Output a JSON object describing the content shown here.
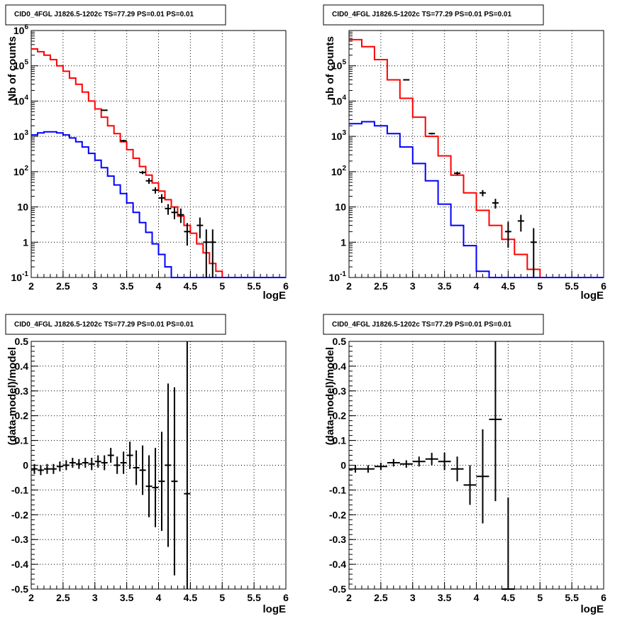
{
  "chart_data": [
    {
      "type": "histogram",
      "title": "CID0_4FGL J1826.5-1202c TS=77.29 PS=0.01 PS=0.01",
      "xlabel": "logE",
      "ylabel": "Nb of counts",
      "xlim": [
        2,
        6
      ],
      "ylim": [
        0.1,
        1000000
      ],
      "yscale": "log",
      "grid": true,
      "x_ticks": [
        "2",
        "2.5",
        "3",
        "3.5",
        "4",
        "4.5",
        "5",
        "5.5",
        "6"
      ],
      "y_ticks": [
        "10^-1",
        "1",
        "10",
        "10^2",
        "10^3",
        "10^4",
        "10^5",
        "10^6"
      ],
      "bin_edges": [
        2.0,
        2.1,
        2.2,
        2.3,
        2.4,
        2.5,
        2.6,
        2.7,
        2.8,
        2.9,
        3.0,
        3.1,
        3.2,
        3.3,
        3.4,
        3.5,
        3.6,
        3.7,
        3.8,
        3.9,
        4.0,
        4.1,
        4.2,
        4.3,
        4.4,
        4.5,
        4.6,
        4.7,
        4.8,
        4.9,
        5.0,
        5.1,
        5.2,
        5.3,
        5.4,
        5.5,
        5.6,
        5.7,
        5.8,
        5.9,
        6.0
      ],
      "series": [
        {
          "color": "#ff0000",
          "style": "step",
          "values": [
            300000,
            250000,
            200000,
            150000,
            100000,
            70000,
            45000,
            30000,
            18000,
            10000,
            6000,
            3500,
            2000,
            1200,
            700,
            420,
            240,
            140,
            80,
            48,
            28,
            16,
            10,
            5.5,
            3,
            1.8,
            0.9,
            0.5,
            0.25,
            0.15,
            0.1,
            0.1,
            0.1,
            0.1,
            0.1,
            0.1,
            0.1,
            0.1,
            0.1,
            0.1
          ]
        },
        {
          "color": "#0000ff",
          "style": "step",
          "values": [
            1100,
            1250,
            1350,
            1350,
            1250,
            1100,
            900,
            700,
            500,
            330,
            210,
            130,
            75,
            42,
            24,
            13,
            7,
            3.6,
            1.9,
            0.9,
            0.45,
            0.2,
            0.1,
            0.1,
            0.1,
            0.1,
            0.1,
            0.1,
            0.1,
            0.1,
            0.1,
            0.1,
            0.1,
            0.1,
            0.1,
            0.1,
            0.1,
            0.1,
            0.1,
            0.1
          ]
        },
        {
          "color": "#000000",
          "style": "errorbar",
          "points": [
            {
              "x": 3.15,
              "y": 5500,
              "ylo": 5300,
              "yhi": 5700
            },
            {
              "x": 3.45,
              "y": 750,
              "ylo": 700,
              "yhi": 800
            },
            {
              "x": 3.75,
              "y": 95,
              "ylo": 85,
              "yhi": 105
            },
            {
              "x": 3.85,
              "y": 55,
              "ylo": 45,
              "yhi": 65
            },
            {
              "x": 3.95,
              "y": 30,
              "ylo": 24,
              "yhi": 36
            },
            {
              "x": 4.05,
              "y": 18,
              "ylo": 13,
              "yhi": 23
            },
            {
              "x": 4.15,
              "y": 9,
              "ylo": 6,
              "yhi": 12
            },
            {
              "x": 4.25,
              "y": 7,
              "ylo": 4.5,
              "yhi": 10
            },
            {
              "x": 4.35,
              "y": 6,
              "ylo": 3.5,
              "yhi": 9
            },
            {
              "x": 4.45,
              "y": 2,
              "ylo": 0.8,
              "yhi": 3.5
            },
            {
              "x": 4.65,
              "y": 3,
              "ylo": 1.3,
              "yhi": 5
            },
            {
              "x": 4.75,
              "y": 1,
              "ylo": 0.1,
              "yhi": 2.3
            },
            {
              "x": 4.85,
              "y": 1,
              "ylo": 0.1,
              "yhi": 2.3
            }
          ]
        }
      ]
    },
    {
      "type": "histogram",
      "title": "CID0_4FGL J1826.5-1202c TS=77.29 PS=0.01 PS=0.01",
      "xlabel": "logE",
      "ylabel": "nb of counts",
      "xlim": [
        2,
        6
      ],
      "ylim": [
        0.1,
        1000000
      ],
      "yscale": "log",
      "grid": true,
      "x_ticks": [
        "2",
        "2.5",
        "3",
        "3.5",
        "4",
        "4.5",
        "5",
        "5.5",
        "6"
      ],
      "y_ticks": [
        "10^-1",
        "1",
        "10",
        "10^2",
        "10^3",
        "10^4",
        "10^5"
      ],
      "bin_edges": [
        2.0,
        2.2,
        2.4,
        2.6,
        2.8,
        3.0,
        3.2,
        3.4,
        3.6,
        3.8,
        4.0,
        4.2,
        4.4,
        4.6,
        4.8,
        5.0,
        5.2,
        5.4,
        5.6,
        5.8,
        6.0
      ],
      "series": [
        {
          "color": "#ff0000",
          "style": "step",
          "values": [
            550000,
            350000,
            150000,
            40000,
            12000,
            3500,
            1000,
            280,
            80,
            25,
            8,
            3,
            1.2,
            0.45,
            0.17,
            0.1,
            0.1,
            0.1,
            0.1,
            0.1
          ]
        },
        {
          "color": "#0000ff",
          "style": "step",
          "values": [
            2300,
            2600,
            2000,
            1200,
            500,
            170,
            55,
            12,
            3,
            0.8,
            0.15,
            0.1,
            0.1,
            0.1,
            0.1,
            0.1,
            0.1,
            0.1,
            0.1,
            0.1
          ]
        },
        {
          "color": "#000000",
          "style": "errorbar",
          "points": [
            {
              "x": 2.9,
              "y": 40000,
              "ylo": 39500,
              "yhi": 40500
            },
            {
              "x": 3.3,
              "y": 1200,
              "ylo": 1130,
              "yhi": 1270
            },
            {
              "x": 3.7,
              "y": 90,
              "ylo": 80,
              "yhi": 100
            },
            {
              "x": 4.1,
              "y": 25,
              "ylo": 20,
              "yhi": 30
            },
            {
              "x": 4.3,
              "y": 13,
              "ylo": 9,
              "yhi": 17
            },
            {
              "x": 4.5,
              "y": 2,
              "ylo": 0.7,
              "yhi": 3.8
            },
            {
              "x": 4.7,
              "y": 4,
              "ylo": 2,
              "yhi": 6
            },
            {
              "x": 4.9,
              "y": 1,
              "ylo": 0.1,
              "yhi": 2.5
            }
          ]
        }
      ]
    },
    {
      "type": "scatter",
      "title": "CID0_4FGL J1826.5-1202c TS=77.29 PS=0.01 PS=0.01",
      "xlabel": "logE",
      "ylabel": "(data-model)/model",
      "xlim": [
        2,
        6
      ],
      "ylim": [
        -0.5,
        0.5
      ],
      "grid": true,
      "x_ticks": [
        "2",
        "2.5",
        "3",
        "3.5",
        "4",
        "4.5",
        "5",
        "5.5",
        "6"
      ],
      "y_ticks": [
        "-0.5",
        "-0.4",
        "-0.3",
        "-0.2",
        "-0.1",
        "0",
        "0.1",
        "0.2",
        "0.3",
        "0.4",
        "0.5"
      ],
      "xerr": 0.05,
      "series": [
        {
          "color": "#000000",
          "style": "errorbar",
          "points": [
            {
              "x": 2.05,
              "y": -0.015,
              "err": 0.02
            },
            {
              "x": 2.15,
              "y": -0.02,
              "err": 0.02
            },
            {
              "x": 2.25,
              "y": -0.015,
              "err": 0.02
            },
            {
              "x": 2.35,
              "y": -0.015,
              "err": 0.02
            },
            {
              "x": 2.45,
              "y": -0.005,
              "err": 0.02
            },
            {
              "x": 2.55,
              "y": 0.0,
              "err": 0.02
            },
            {
              "x": 2.65,
              "y": 0.01,
              "err": 0.02
            },
            {
              "x": 2.75,
              "y": 0.005,
              "err": 0.02
            },
            {
              "x": 2.85,
              "y": 0.01,
              "err": 0.02
            },
            {
              "x": 2.95,
              "y": 0.005,
              "err": 0.025
            },
            {
              "x": 3.05,
              "y": 0.015,
              "err": 0.025
            },
            {
              "x": 3.15,
              "y": 0.01,
              "err": 0.03
            },
            {
              "x": 3.25,
              "y": 0.04,
              "err": 0.03
            },
            {
              "x": 3.35,
              "y": 0.0,
              "err": 0.035
            },
            {
              "x": 3.45,
              "y": 0.01,
              "err": 0.045
            },
            {
              "x": 3.55,
              "y": 0.04,
              "err": 0.055
            },
            {
              "x": 3.65,
              "y": -0.01,
              "err": 0.07
            },
            {
              "x": 3.75,
              "y": -0.02,
              "err": 0.1
            },
            {
              "x": 3.85,
              "y": -0.085,
              "err": 0.125
            },
            {
              "x": 3.95,
              "y": -0.09,
              "err": 0.16
            },
            {
              "x": 4.05,
              "y": -0.065,
              "err": 0.2
            },
            {
              "x": 4.15,
              "y": 0.0,
              "err": 0.33
            },
            {
              "x": 4.25,
              "y": -0.065,
              "err": 0.38
            },
            {
              "x": 4.45,
              "y": -0.115,
              "err": 0.7
            }
          ]
        }
      ]
    },
    {
      "type": "scatter",
      "title": "CID0_4FGL J1826.5-1202c TS=77.29 PS=0.01 PS=0.01",
      "xlabel": "logE",
      "ylabel": "(data-model)/model",
      "xlim": [
        2,
        6
      ],
      "ylim": [
        -0.5,
        0.5
      ],
      "grid": true,
      "x_ticks": [
        "2",
        "2.5",
        "3",
        "3.5",
        "4",
        "4.5",
        "5",
        "5.5",
        "6"
      ],
      "y_ticks": [
        "-0.5",
        "-0.4",
        "-0.3",
        "-0.2",
        "-0.1",
        "0",
        "0.1",
        "0.2",
        "0.3",
        "0.4",
        "0.5"
      ],
      "xerr": 0.1,
      "series": [
        {
          "color": "#000000",
          "style": "errorbar",
          "points": [
            {
              "x": 2.1,
              "y": -0.015,
              "err": 0.015
            },
            {
              "x": 2.3,
              "y": -0.015,
              "err": 0.015
            },
            {
              "x": 2.5,
              "y": -0.005,
              "err": 0.015
            },
            {
              "x": 2.7,
              "y": 0.01,
              "err": 0.015
            },
            {
              "x": 2.9,
              "y": 0.005,
              "err": 0.015
            },
            {
              "x": 3.1,
              "y": 0.015,
              "err": 0.02
            },
            {
              "x": 3.3,
              "y": 0.025,
              "err": 0.025
            },
            {
              "x": 3.5,
              "y": 0.015,
              "err": 0.035
            },
            {
              "x": 3.7,
              "y": -0.015,
              "err": 0.05
            },
            {
              "x": 3.9,
              "y": -0.08,
              "err": 0.08
            },
            {
              "x": 4.1,
              "y": -0.045,
              "err": 0.19
            },
            {
              "x": 4.3,
              "y": 0.185,
              "err": 0.33
            },
            {
              "x": 4.5,
              "y": -0.5,
              "err": 0.37
            }
          ]
        }
      ]
    }
  ]
}
